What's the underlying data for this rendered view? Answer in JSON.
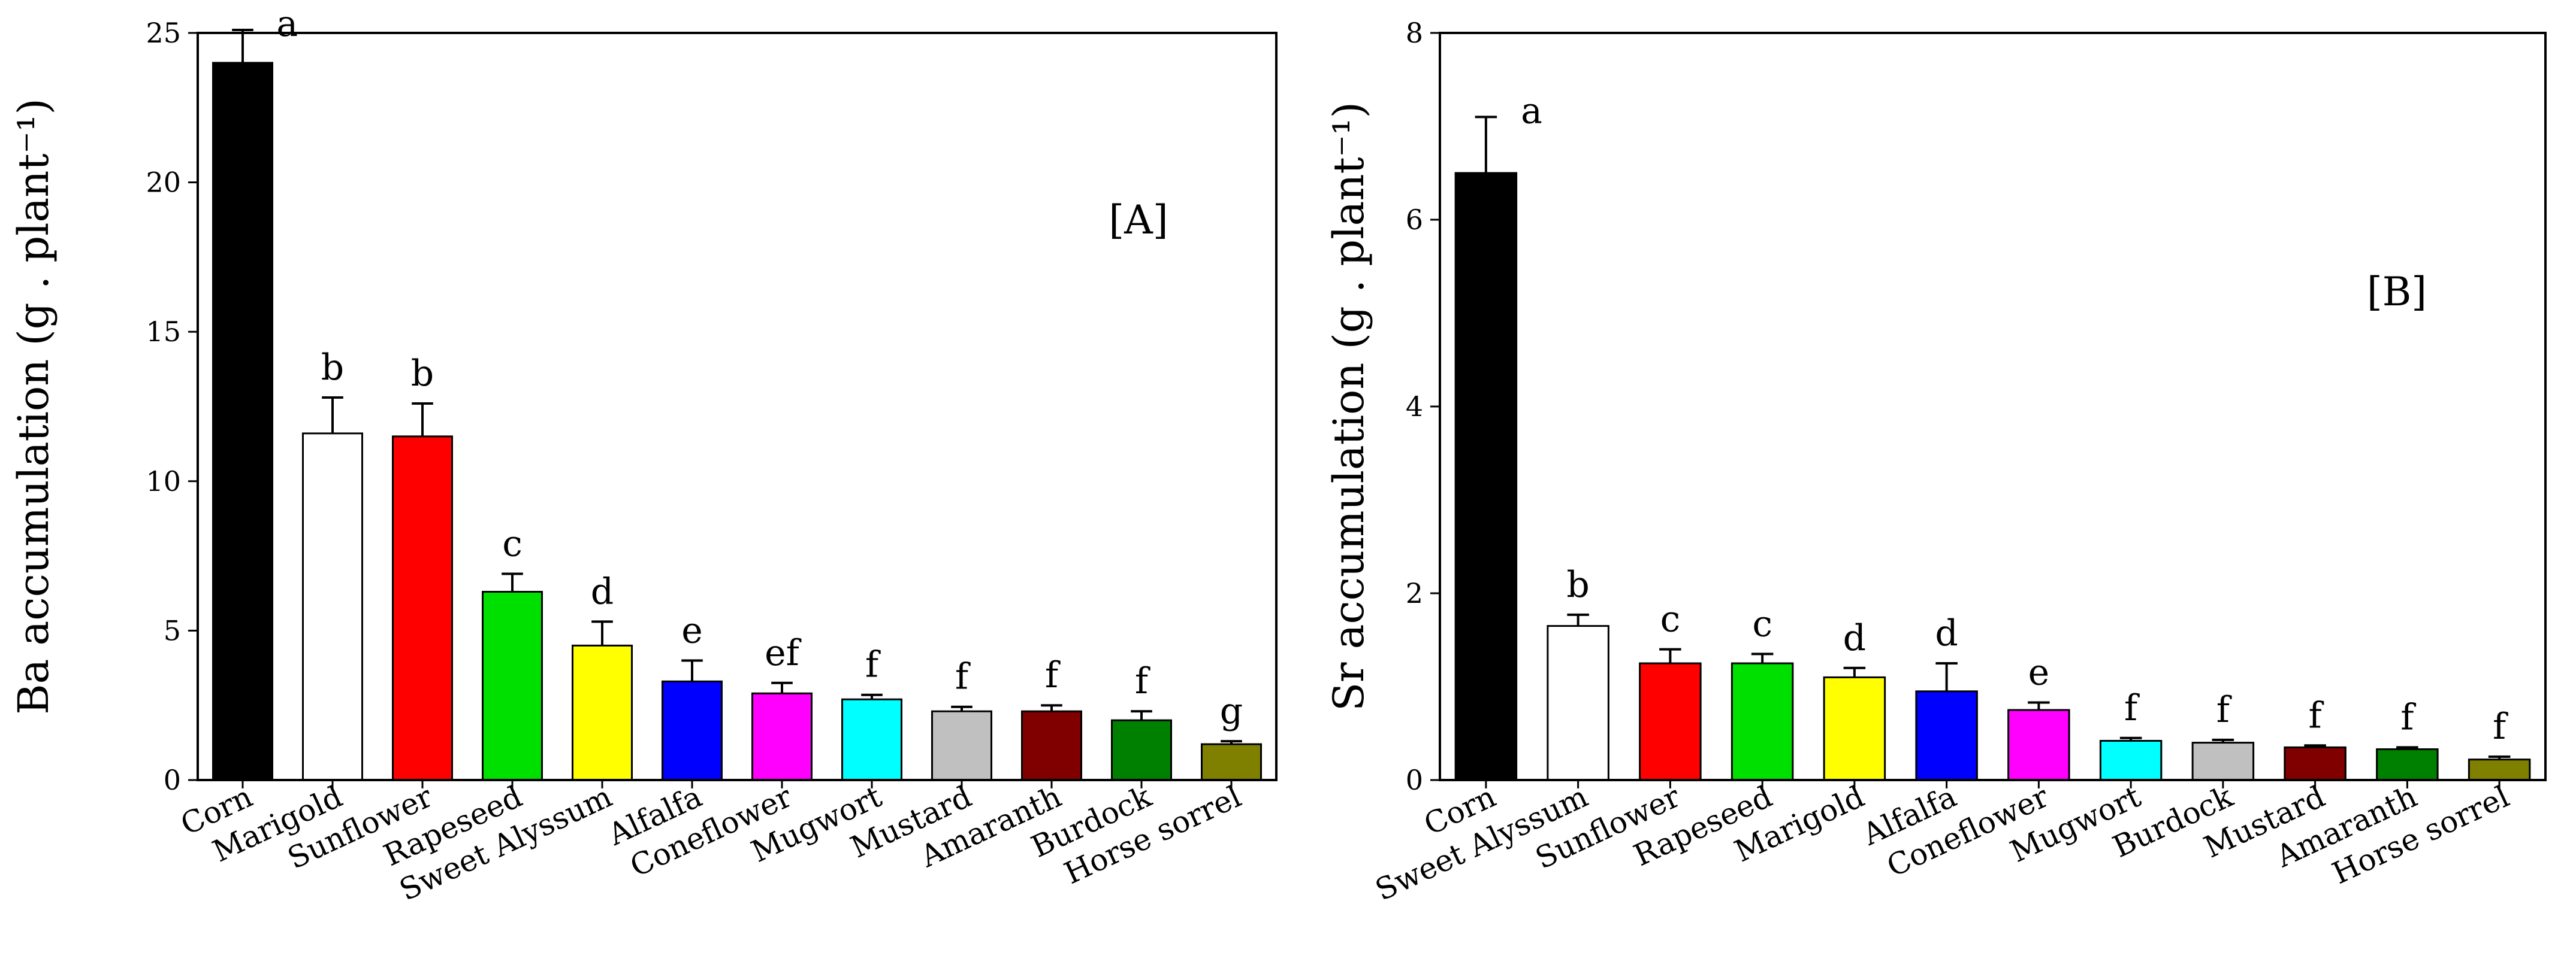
{
  "chart_data": [
    {
      "type": "bar",
      "panel_label": "[A]",
      "ylabel": "Ba accumulation (g . plant⁻¹)",
      "xlabel": "",
      "ylim": [
        0,
        25
      ],
      "yticks": [
        0,
        5,
        10,
        15,
        20,
        25
      ],
      "categories": [
        "Corn",
        "Marigold",
        "Sunflower",
        "Rapeseed",
        "Sweet Alyssum",
        "Alfalfa",
        "Coneflower",
        "Mugwort",
        "Mustard",
        "Amaranth",
        "Burdock",
        "Horse sorrel"
      ],
      "values": [
        24.0,
        11.6,
        11.5,
        6.3,
        4.5,
        3.3,
        2.9,
        2.7,
        2.3,
        2.3,
        2.0,
        1.2
      ],
      "errors": [
        1.1,
        1.2,
        1.1,
        0.6,
        0.8,
        0.7,
        0.35,
        0.15,
        0.15,
        0.2,
        0.3,
        0.1
      ],
      "significance": [
        "a",
        "b",
        "b",
        "c",
        "d",
        "e",
        "ef",
        "f",
        "f",
        "f",
        "f",
        "g"
      ],
      "colors": [
        "#000000",
        "#ffffff",
        "#ff0000",
        "#00e000",
        "#ffff00",
        "#0000ff",
        "#ff00ff",
        "#00ffff",
        "#c0c0c0",
        "#800000",
        "#008000",
        "#808000"
      ],
      "grid": false
    },
    {
      "type": "bar",
      "panel_label": "[B]",
      "ylabel": "Sr accumulation (g . plant⁻¹)",
      "xlabel": "",
      "ylim": [
        0,
        8
      ],
      "yticks": [
        0,
        2,
        4,
        6,
        8
      ],
      "categories": [
        "Corn",
        "Sweet Alyssum",
        "Sunflower",
        "Rapeseed",
        "Marigold",
        "Alfalfa",
        "Coneflower",
        "Mugwort",
        "Burdock",
        "Mustard",
        "Amaranth",
        "Horse sorrel"
      ],
      "values": [
        6.5,
        1.65,
        1.25,
        1.25,
        1.1,
        0.95,
        0.75,
        0.42,
        0.4,
        0.35,
        0.33,
        0.22
      ],
      "errors": [
        0.6,
        0.12,
        0.15,
        0.1,
        0.1,
        0.3,
        0.08,
        0.03,
        0.03,
        0.02,
        0.02,
        0.03
      ],
      "significance": [
        "a",
        "b",
        "c",
        "c",
        "d",
        "d",
        "e",
        "f",
        "f",
        "f",
        "f",
        "f"
      ],
      "colors": [
        "#000000",
        "#ffffff",
        "#ff0000",
        "#00e000",
        "#ffff00",
        "#0000ff",
        "#ff00ff",
        "#00ffff",
        "#c0c0c0",
        "#800000",
        "#008000",
        "#808000"
      ],
      "grid": false
    }
  ]
}
